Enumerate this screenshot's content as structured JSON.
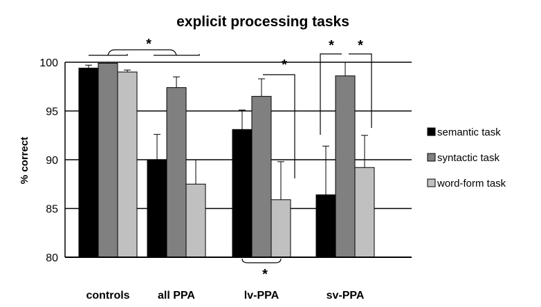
{
  "chart_data": {
    "type": "bar",
    "title": "explicit processing tasks",
    "ylabel": "% correct",
    "xlabel": "",
    "ylim": [
      80,
      100
    ],
    "yticks": [
      80,
      85,
      90,
      95,
      100
    ],
    "grid": true,
    "legend_position": "right",
    "categories": [
      "controls",
      "all PPA",
      "lv-PPA",
      "sv-PPA"
    ],
    "series": [
      {
        "name": "semantic task",
        "color": "#000000",
        "values": [
          99.4,
          90.0,
          93.1,
          86.4
        ],
        "errors": [
          0.3,
          2.6,
          2.0,
          5.0
        ]
      },
      {
        "name": "syntactic task",
        "color": "#808080",
        "values": [
          99.9,
          97.4,
          96.5,
          98.6
        ],
        "errors": [
          0.1,
          1.1,
          1.8,
          1.4
        ]
      },
      {
        "name": "word-form task",
        "color": "#c0c0c0",
        "values": [
          99.0,
          87.5,
          85.9,
          89.2
        ],
        "errors": [
          0.2,
          2.5,
          3.9,
          3.3
        ]
      }
    ],
    "annotations": [
      {
        "text": "*",
        "meaning": "significant difference: controls vs all PPA"
      },
      {
        "text": "*",
        "meaning": "lv-PPA: syntactic vs word-form task"
      },
      {
        "text": "*",
        "meaning": "lv-PPA: semantic vs word-form task"
      },
      {
        "text": "*",
        "meaning": "sv-PPA: semantic vs syntactic task"
      },
      {
        "text": "*",
        "meaning": "sv-PPA: syntactic vs word-form task"
      }
    ]
  }
}
